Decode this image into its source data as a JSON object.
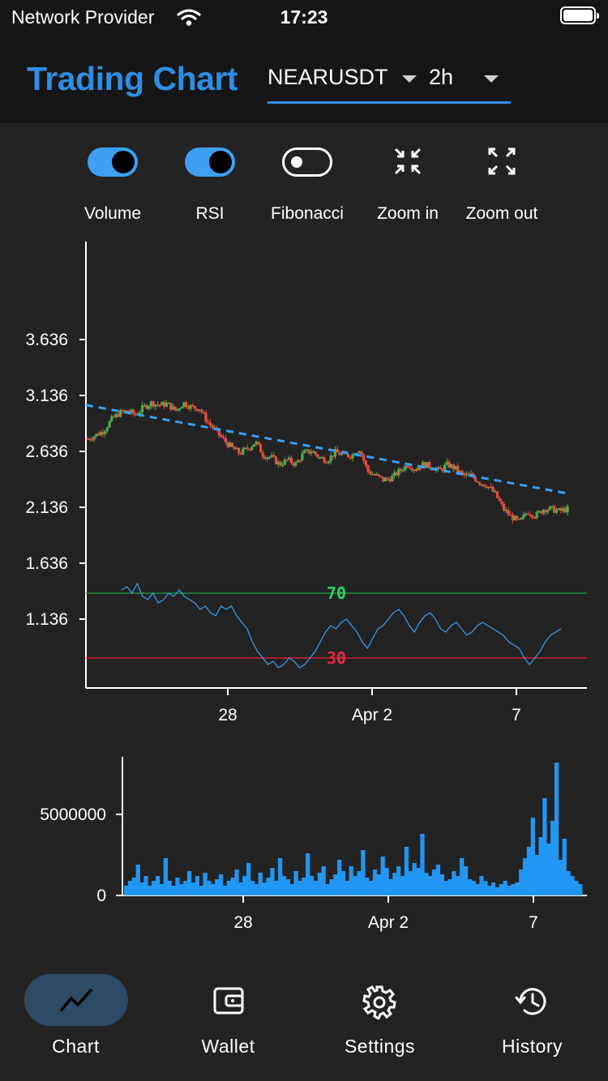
{
  "status_bar": {
    "carrier": "Network Provider",
    "time": "17:23"
  },
  "header": {
    "title": "Trading Chart",
    "symbol": "NEARUSDT",
    "interval": "2h",
    "accent": "#2f8de4"
  },
  "toolbar": {
    "items": [
      {
        "label": "Volume",
        "type": "toggle",
        "on": true
      },
      {
        "label": "RSI",
        "type": "toggle",
        "on": true
      },
      {
        "label": "Fibonacci",
        "type": "toggle",
        "on": false
      },
      {
        "label": "Zoom in",
        "type": "button",
        "icon": "zoom-in-icon"
      },
      {
        "label": "Zoom out",
        "type": "button",
        "icon": "zoom-out-icon"
      }
    ]
  },
  "chart_data": [
    {
      "type": "candlestick",
      "y_ticks": [
        "3.636",
        "3.136",
        "2.636",
        "2.136",
        "1.636",
        "1.136"
      ],
      "x_ticks": [
        "28",
        "Apr 2",
        "7"
      ],
      "ylim": [
        0.5,
        4.5
      ],
      "close_path": [
        [
          0,
          2.75
        ],
        [
          2,
          2.78
        ],
        [
          4,
          2.82
        ],
        [
          6,
          2.92
        ],
        [
          8,
          2.98
        ],
        [
          10,
          3.0
        ],
        [
          12,
          2.96
        ],
        [
          14,
          3.03
        ],
        [
          16,
          3.07
        ],
        [
          18,
          3.05
        ],
        [
          20,
          3.06
        ],
        [
          22,
          3.0
        ],
        [
          24,
          3.07
        ],
        [
          26,
          3.03
        ],
        [
          28,
          3.02
        ],
        [
          30,
          2.9
        ],
        [
          32,
          2.82
        ],
        [
          34,
          2.74
        ],
        [
          36,
          2.67
        ],
        [
          38,
          2.62
        ],
        [
          40,
          2.66
        ],
        [
          42,
          2.72
        ],
        [
          44,
          2.6
        ],
        [
          46,
          2.58
        ],
        [
          48,
          2.52
        ],
        [
          50,
          2.56
        ],
        [
          52,
          2.52
        ],
        [
          54,
          2.62
        ],
        [
          56,
          2.64
        ],
        [
          58,
          2.58
        ],
        [
          60,
          2.56
        ],
        [
          62,
          2.63
        ],
        [
          64,
          2.6
        ],
        [
          66,
          2.6
        ],
        [
          68,
          2.66
        ],
        [
          70,
          2.46
        ],
        [
          72,
          2.42
        ],
        [
          74,
          2.38
        ],
        [
          76,
          2.4
        ],
        [
          78,
          2.46
        ],
        [
          80,
          2.52
        ],
        [
          82,
          2.48
        ],
        [
          84,
          2.52
        ],
        [
          86,
          2.5
        ],
        [
          88,
          2.46
        ],
        [
          90,
          2.52
        ],
        [
          92,
          2.48
        ],
        [
          94,
          2.42
        ],
        [
          96,
          2.42
        ],
        [
          98,
          2.36
        ],
        [
          100,
          2.33
        ],
        [
          102,
          2.25
        ],
        [
          104,
          2.12
        ],
        [
          106,
          2.05
        ],
        [
          108,
          2.0
        ],
        [
          110,
          2.1
        ],
        [
          112,
          2.06
        ],
        [
          114,
          2.12
        ],
        [
          116,
          2.12
        ],
        [
          118,
          2.1
        ],
        [
          120,
          2.12
        ]
      ],
      "trendline": {
        "start": 3.05,
        "end": 2.26,
        "color": "#3a9ff0"
      },
      "up_color": "#4caf50",
      "down_color": "#f04a3e"
    },
    {
      "type": "line",
      "name": "RSI",
      "levels": [
        {
          "value": "70",
          "color": "#1e8a3e",
          "text_color": "#25d366"
        },
        {
          "value": "30",
          "color": "#d0202e",
          "text_color": "#e8284b"
        }
      ],
      "values": [
        72,
        74,
        70,
        76,
        68,
        66,
        70,
        64,
        66,
        70,
        68,
        72,
        68,
        66,
        64,
        60,
        62,
        58,
        56,
        62,
        60,
        62,
        56,
        52,
        48,
        40,
        34,
        30,
        26,
        28,
        24,
        26,
        30,
        28,
        24,
        26,
        30,
        34,
        40,
        46,
        50,
        48,
        52,
        54,
        50,
        46,
        40,
        36,
        42,
        48,
        50,
        54,
        58,
        60,
        56,
        50,
        46,
        52,
        56,
        58,
        54,
        48,
        46,
        50,
        52,
        48,
        44,
        46,
        50,
        52,
        50,
        48,
        46,
        44,
        40,
        38,
        36,
        30,
        26,
        30,
        34,
        40,
        44,
        46,
        48
      ],
      "color": "#3a9ff0"
    },
    {
      "type": "bar",
      "name": "Volume",
      "y_ticks": [
        "5000000",
        "0"
      ],
      "x_ticks": [
        "28",
        "Apr 2",
        "7"
      ],
      "ylim": [
        0,
        8500000
      ],
      "values": [
        600000,
        900000,
        1100000,
        1900000,
        800000,
        1200000,
        600000,
        900000,
        1200000,
        700000,
        2300000,
        900000,
        600000,
        1100000,
        700000,
        900000,
        1500000,
        800000,
        1200000,
        600000,
        1400000,
        900000,
        700000,
        1000000,
        1300000,
        600000,
        900000,
        1100000,
        1600000,
        800000,
        1200000,
        2000000,
        900000,
        700000,
        1400000,
        800000,
        1100000,
        1700000,
        900000,
        2300000,
        1200000,
        1000000,
        700000,
        1500000,
        900000,
        1100000,
        2600000,
        1200000,
        900000,
        1400000,
        1800000,
        700000,
        1000000,
        1300000,
        2200000,
        1500000,
        900000,
        1800000,
        1200000,
        1500000,
        2800000,
        1100000,
        900000,
        1600000,
        1300000,
        2400000,
        1700000,
        1000000,
        1400000,
        1800000,
        1200000,
        3000000,
        1500000,
        2000000,
        1700000,
        3800000,
        1400000,
        1200000,
        1600000,
        1900000,
        1300000,
        900000,
        1000000,
        1500000,
        1200000,
        2300000,
        1800000,
        1000000,
        900000,
        700000,
        1200000,
        900000,
        600000,
        800000,
        500000,
        700000,
        900000,
        600000,
        700000,
        800000,
        1600000,
        2300000,
        3000000,
        4800000,
        2500000,
        3600000,
        6000000,
        3200000,
        4600000,
        8200000,
        2200000,
        3500000,
        1500000,
        1200000,
        900000,
        700000
      ],
      "color": "#2196f3"
    }
  ],
  "nav": {
    "items": [
      {
        "label": "Chart",
        "icon": "chart-icon",
        "active": true
      },
      {
        "label": "Wallet",
        "icon": "wallet-icon",
        "active": false
      },
      {
        "label": "Settings",
        "icon": "gear-icon",
        "active": false
      },
      {
        "label": "History",
        "icon": "history-icon",
        "active": false
      }
    ]
  }
}
